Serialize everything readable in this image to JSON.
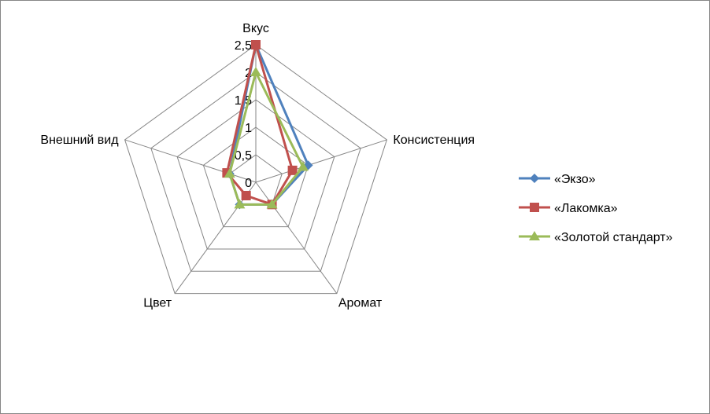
{
  "chart_data": {
    "type": "radar",
    "categories": [
      "Вкус",
      "Консистенция",
      "Аромат",
      "Цвет",
      "Внешний вид"
    ],
    "rmin": 0,
    "rmax": 2.5,
    "ticks": [
      "0",
      "0,5",
      "1",
      "1,5",
      "2",
      "2,5"
    ],
    "tick_values": [
      0,
      0.5,
      1,
      1.5,
      2,
      2.5
    ],
    "grid": true,
    "legend_position": "right",
    "series": [
      {
        "name": "«Экзо»",
        "values": [
          2.5,
          1.0,
          0.5,
          0.5,
          0.5
        ],
        "color": "#4F81BD",
        "marker": "diamond"
      },
      {
        "name": "«Лакомка»",
        "values": [
          2.5,
          0.7,
          0.5,
          0.3,
          0.55
        ],
        "color": "#C0504D",
        "marker": "square"
      },
      {
        "name": "«Золотой стандарт»",
        "values": [
          2.0,
          0.9,
          0.5,
          0.5,
          0.5
        ],
        "color": "#9BBB59",
        "marker": "triangle"
      }
    ]
  }
}
